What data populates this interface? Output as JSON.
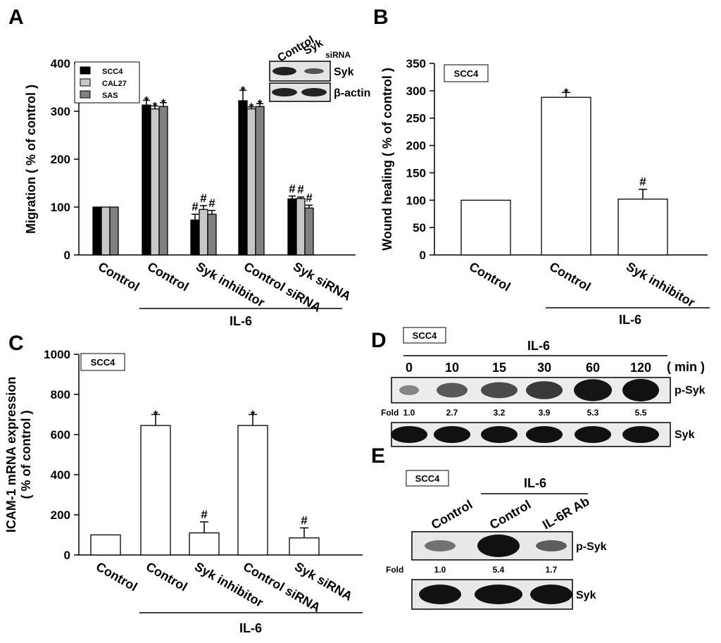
{
  "panels": {
    "A": {
      "label": "A",
      "legend": [
        "SCC4",
        "CAL27",
        "SAS"
      ],
      "treatment": "IL-6",
      "blot": {
        "columns": [
          "Control",
          "Syk"
        ],
        "sub": "siRNA",
        "rows": [
          "Syk",
          "β-actin"
        ]
      }
    },
    "B": {
      "label": "B",
      "cell_line": "SCC4",
      "treatment": "IL-6"
    },
    "C": {
      "label": "C",
      "cell_line": "SCC4",
      "treatment": "IL-6"
    },
    "D": {
      "label": "D",
      "cell_line": "SCC4",
      "treatment": "IL-6",
      "times": [
        "0",
        "10",
        "15",
        "30",
        "60",
        "120"
      ],
      "unit": "( min )",
      "fold_label": "Fold",
      "folds": [
        "1.0",
        "2.7",
        "3.2",
        "3.9",
        "5.3",
        "5.5"
      ],
      "rows": [
        "p-Syk",
        "Syk"
      ]
    },
    "E": {
      "label": "E",
      "cell_line": "SCC4",
      "treatment": "IL-6",
      "columns": [
        "Control",
        "Control",
        "IL-6R Ab"
      ],
      "fold_label": "Fold",
      "folds": [
        "1.0",
        "5.4",
        "1.7"
      ],
      "rows": [
        "p-Syk",
        "Syk"
      ]
    }
  },
  "chart_data": [
    {
      "type": "bar",
      "panel": "A",
      "ylabel": "Migration ( % of control )",
      "ylim": [
        0,
        400
      ],
      "yticks": [
        "0",
        "100",
        "200",
        "300",
        "400"
      ],
      "categories": [
        "Control",
        "Control",
        "Syk inhibitor",
        "Control siRNA",
        "Syk siRNA"
      ],
      "series": [
        {
          "name": "SCC4",
          "color": "#000000",
          "values": [
            100,
            313,
            73,
            322,
            117
          ],
          "errors": [
            0,
            10,
            12,
            22,
            6
          ],
          "marks": [
            "",
            "*",
            "#",
            "*",
            "#"
          ]
        },
        {
          "name": "CAL27",
          "color": "#c8c8c8",
          "values": [
            100,
            305,
            95,
            305,
            118
          ],
          "errors": [
            0,
            6,
            8,
            4,
            3
          ],
          "marks": [
            "",
            "*",
            "#",
            "*",
            "#"
          ]
        },
        {
          "name": "SAS",
          "color": "#808080",
          "values": [
            100,
            310,
            85,
            310,
            98
          ],
          "errors": [
            0,
            8,
            8,
            6,
            6
          ],
          "marks": [
            "",
            "*",
            "#",
            "*",
            "#"
          ]
        }
      ]
    },
    {
      "type": "bar",
      "panel": "B",
      "ylabel": "Wound healing ( % of control )",
      "ylim": [
        0,
        350
      ],
      "yticks": [
        "0",
        "50",
        "100",
        "150",
        "200",
        "250",
        "300",
        "350"
      ],
      "categories": [
        "Control",
        "Control",
        "Syk inhibitor"
      ],
      "values": [
        100,
        288,
        102
      ],
      "errors": [
        0,
        9,
        18
      ],
      "marks": [
        "",
        "*",
        "#"
      ]
    },
    {
      "type": "bar",
      "panel": "C",
      "ylabel": "ICAM-1 mRNA expression",
      "ylabel2": "( % of control )",
      "ylim": [
        0,
        1000
      ],
      "yticks": [
        "0",
        "200",
        "400",
        "600",
        "800",
        "1000"
      ],
      "categories": [
        "Control",
        "Control",
        "Syk inhibitor",
        "Control siRNA",
        "Syk siRNA"
      ],
      "values": [
        100,
        645,
        110,
        645,
        85
      ],
      "errors": [
        0,
        55,
        55,
        55,
        50
      ],
      "marks": [
        "",
        "*",
        "#",
        "*",
        "#"
      ]
    }
  ]
}
